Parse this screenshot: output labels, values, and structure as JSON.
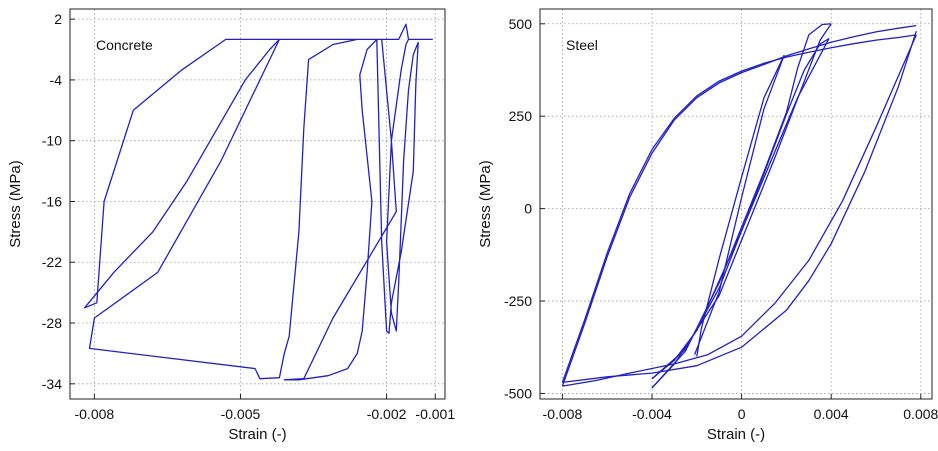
{
  "chart_data": [
    {
      "type": "line",
      "annotation": "Concrete",
      "xlabel": "Strain (-)",
      "ylabel": "Stress (MPa)",
      "xlim": [
        -0.0085,
        -0.0008
      ],
      "ylim": [
        -35.5,
        3
      ],
      "xticks": [
        -0.008,
        -0.005,
        -0.002,
        -0.001
      ],
      "xtick_labels": [
        "-0.008",
        "-0.005",
        "-0.002",
        "-0.001"
      ],
      "yticks": [
        2,
        -4,
        -10,
        -16,
        -22,
        -28,
        -34
      ],
      "ytick_labels": [
        "2",
        "-4",
        "-10",
        "-16",
        "-22",
        "-28",
        "-34"
      ],
      "grid": true,
      "color": "#2020c8",
      "series": [
        {
          "x": [
            -0.00105,
            -0.0015,
            -0.00155,
            -0.0016,
            -0.00175,
            -0.002,
            -0.00215,
            -0.00245,
            -0.0029,
            -0.0037,
            -0.0038,
            -0.0041,
            -0.0043,
            -0.0045,
            -0.0053,
            -0.0062,
            -0.0072,
            -0.0078,
            -0.00795,
            -0.0082,
            -0.0076,
            -0.0068,
            -0.0061,
            -0.0055,
            -0.0049,
            -0.0044,
            -0.0042,
            -0.0054,
            -0.0067,
            -0.008,
            -0.0081,
            -0.0064,
            -0.0047,
            -0.0046,
            -0.0042,
            -0.0041,
            -0.004,
            -0.0038,
            -0.0037,
            -0.0036,
            -0.0031,
            -0.0026,
            -0.0024,
            -0.0021,
            -0.0019,
            -0.0018,
            -0.0031,
            -0.0037,
            -0.0041,
            -0.0038,
            -0.0032,
            -0.0028,
            -0.0026,
            -0.0025,
            -0.0024,
            -0.0023,
            -0.0025,
            -0.00255,
            -0.0024,
            -0.0022,
            -0.0021,
            -0.002,
            -0.00195,
            -0.0019,
            -0.0017,
            -0.00145,
            -0.0014,
            -0.00135,
            -0.00145,
            -0.00155,
            -0.00165,
            -0.0017,
            -0.00175,
            -0.0018,
            -0.0019,
            -0.002,
            -0.0019,
            -0.0017,
            -0.0016,
            -0.00155
          ],
          "y": [
            0,
            0,
            0,
            1.5,
            0,
            0,
            0,
            0,
            0,
            0,
            0,
            0,
            0,
            0,
            0,
            -3,
            -7,
            -16,
            -26,
            -26.5,
            -23,
            -19,
            -14,
            -9,
            -4,
            -1,
            0,
            -12,
            -23,
            -27.5,
            -30.5,
            -31.5,
            -32.5,
            -33.5,
            -33.4,
            -31,
            -29.3,
            -19,
            -8.8,
            -2,
            -0.5,
            0,
            0,
            0,
            -10,
            -17,
            -27.5,
            -33.5,
            -33.6,
            -33.6,
            -33.2,
            -32.5,
            -31,
            -28.8,
            -23,
            -16,
            -7,
            -3.5,
            -1,
            0,
            -20,
            -28.8,
            -29,
            -26,
            -21,
            -13,
            -4.5,
            -0.3,
            -1.5,
            -5,
            -12,
            -18,
            -24,
            -28.8,
            -27,
            -20,
            -10,
            -3,
            -0.5,
            0
          ]
        }
      ]
    },
    {
      "type": "line",
      "annotation": "Steel",
      "xlabel": "Strain (-)",
      "ylabel": "Stress (MPa)",
      "xlim": [
        -0.009,
        0.0085
      ],
      "ylim": [
        -515,
        540
      ],
      "xticks": [
        -0.008,
        -0.004,
        0,
        0.004,
        0.008
      ],
      "xtick_labels": [
        "-0.008",
        "-0.004",
        "0",
        "0.004",
        "0.008"
      ],
      "yticks": [
        500,
        250,
        0,
        -250,
        -500
      ],
      "ytick_labels": [
        "500",
        "250",
        "0",
        "-250",
        "-500"
      ],
      "grid": true,
      "color": "#2020c8",
      "series": [
        {
          "x": [
            -0.008,
            -0.007,
            -0.006,
            -0.005,
            -0.004,
            -0.003,
            -0.002,
            -0.001,
            0,
            0.001,
            0.002,
            0.003,
            0.004,
            0.005,
            0.006,
            0.007,
            0.0078
          ],
          "y": [
            -470,
            -300,
            -120,
            40,
            160,
            245,
            305,
            345,
            372,
            393,
            410,
            423,
            435,
            446,
            456,
            463,
            470
          ]
        },
        {
          "x": [
            -0.008,
            -0.0065,
            -0.005,
            -0.003,
            -0.0015,
            0,
            0.0015,
            0.003,
            0.0045,
            0.006,
            0.0078
          ],
          "y": [
            -480,
            -465,
            -445,
            -420,
            -395,
            -345,
            -255,
            -140,
            20,
            220,
            470
          ]
        },
        {
          "x": [
            -0.008,
            -0.007,
            -0.006,
            -0.005,
            -0.004,
            -0.003,
            -0.002,
            -0.001,
            0,
            0.001,
            0.002,
            0.003,
            0.004,
            0.005,
            0.006,
            0.007,
            0.0078
          ],
          "y": [
            -480,
            -310,
            -130,
            30,
            150,
            240,
            300,
            340,
            368,
            390,
            413,
            432,
            450,
            465,
            478,
            488,
            495
          ]
        },
        {
          "x": [
            -0.008,
            -0.006,
            -0.004,
            -0.002,
            0,
            0.002,
            0.003,
            0.004,
            0.0055,
            0.007,
            0.0078
          ],
          "y": [
            -470,
            -455,
            -445,
            -425,
            -375,
            -275,
            -195,
            -95,
            100,
            330,
            480
          ]
        },
        {
          "x": [
            -0.004,
            -0.0025,
            -0.001,
            0.001,
            0.002,
            0.0025,
            0.003,
            0.0036,
            0.004
          ],
          "y": [
            -485,
            -385,
            -200,
            100,
            260,
            380,
            470,
            498,
            500
          ]
        },
        {
          "x": [
            0.004,
            0.0035,
            0.0015,
            -0.001,
            -0.003,
            -0.004
          ],
          "y": [
            500,
            455,
            140,
            -235,
            -420,
            -485
          ]
        },
        {
          "x": [
            -0.004,
            -0.0025,
            -0.001,
            0.001,
            0.002,
            0.0028,
            0.0035,
            0.0039
          ],
          "y": [
            -460,
            -380,
            -215,
            95,
            255,
            375,
            445,
            460
          ]
        },
        {
          "x": [
            0.0039,
            0.0025,
            0,
            -0.002,
            -0.003,
            -0.004
          ],
          "y": [
            460,
            300,
            -60,
            -330,
            -410,
            -460
          ]
        },
        {
          "x": [
            -0.002,
            -0.0018,
            -0.001,
            0,
            0.001,
            0.0019
          ],
          "y": [
            -400,
            -325,
            -135,
            85,
            300,
            415
          ]
        },
        {
          "x": [
            0.0019,
            0.001,
            0,
            -0.001,
            -0.0021
          ],
          "y": [
            415,
            270,
            30,
            -225,
            -395
          ]
        }
      ]
    }
  ]
}
